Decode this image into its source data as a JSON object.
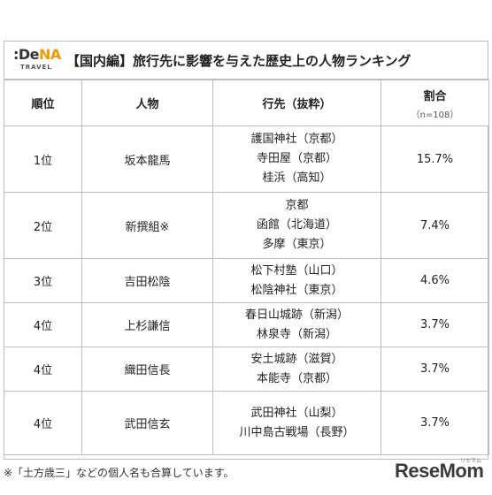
{
  "logo": {
    "main_prefix": ":De",
    "main_accent": "NA",
    "sub": "TRAVEL"
  },
  "title": "【国内編】旅行先に影響を与えた歴史上の人物ランキング",
  "table": {
    "headers": {
      "rank": "順位",
      "person": "人物",
      "destination": "行先（抜粋）",
      "ratio": "割合",
      "ratio_sub": "（n=108）"
    },
    "rows": [
      {
        "rank": "1位",
        "person": "坂本龍馬",
        "destinations": [
          "護国神社（京都）",
          "寺田屋（京都）",
          "桂浜（高知）"
        ],
        "ratio": "15.7%"
      },
      {
        "rank": "2位",
        "person": "新撰組※",
        "destinations": [
          "京都",
          "函館（北海道）",
          "多摩（東京）"
        ],
        "ratio": "7.4%"
      },
      {
        "rank": "3位",
        "person": "吉田松陰",
        "destinations": [
          "松下村塾（山口）",
          "松陰神社（東京）"
        ],
        "ratio": "4.6%"
      },
      {
        "rank": "4位",
        "person": "上杉謙信",
        "destinations": [
          "春日山城跡（新潟）",
          "林泉寺（新潟）"
        ],
        "ratio": "3.7%"
      },
      {
        "rank": "4位",
        "person": "織田信長",
        "destinations": [
          "安土城跡（滋賀）",
          "本能寺（京都）"
        ],
        "ratio": "3.7%"
      },
      {
        "rank": "4位",
        "person": "武田信玄",
        "destinations": [
          "武田神社（山梨）",
          "川中島古戦場（長野）"
        ],
        "ratio": "3.7%"
      }
    ]
  },
  "note": "※「土方歳三」などの個人名も合算しています。",
  "brand": {
    "name": "ReseMom",
    "sub": "リセマム"
  }
}
